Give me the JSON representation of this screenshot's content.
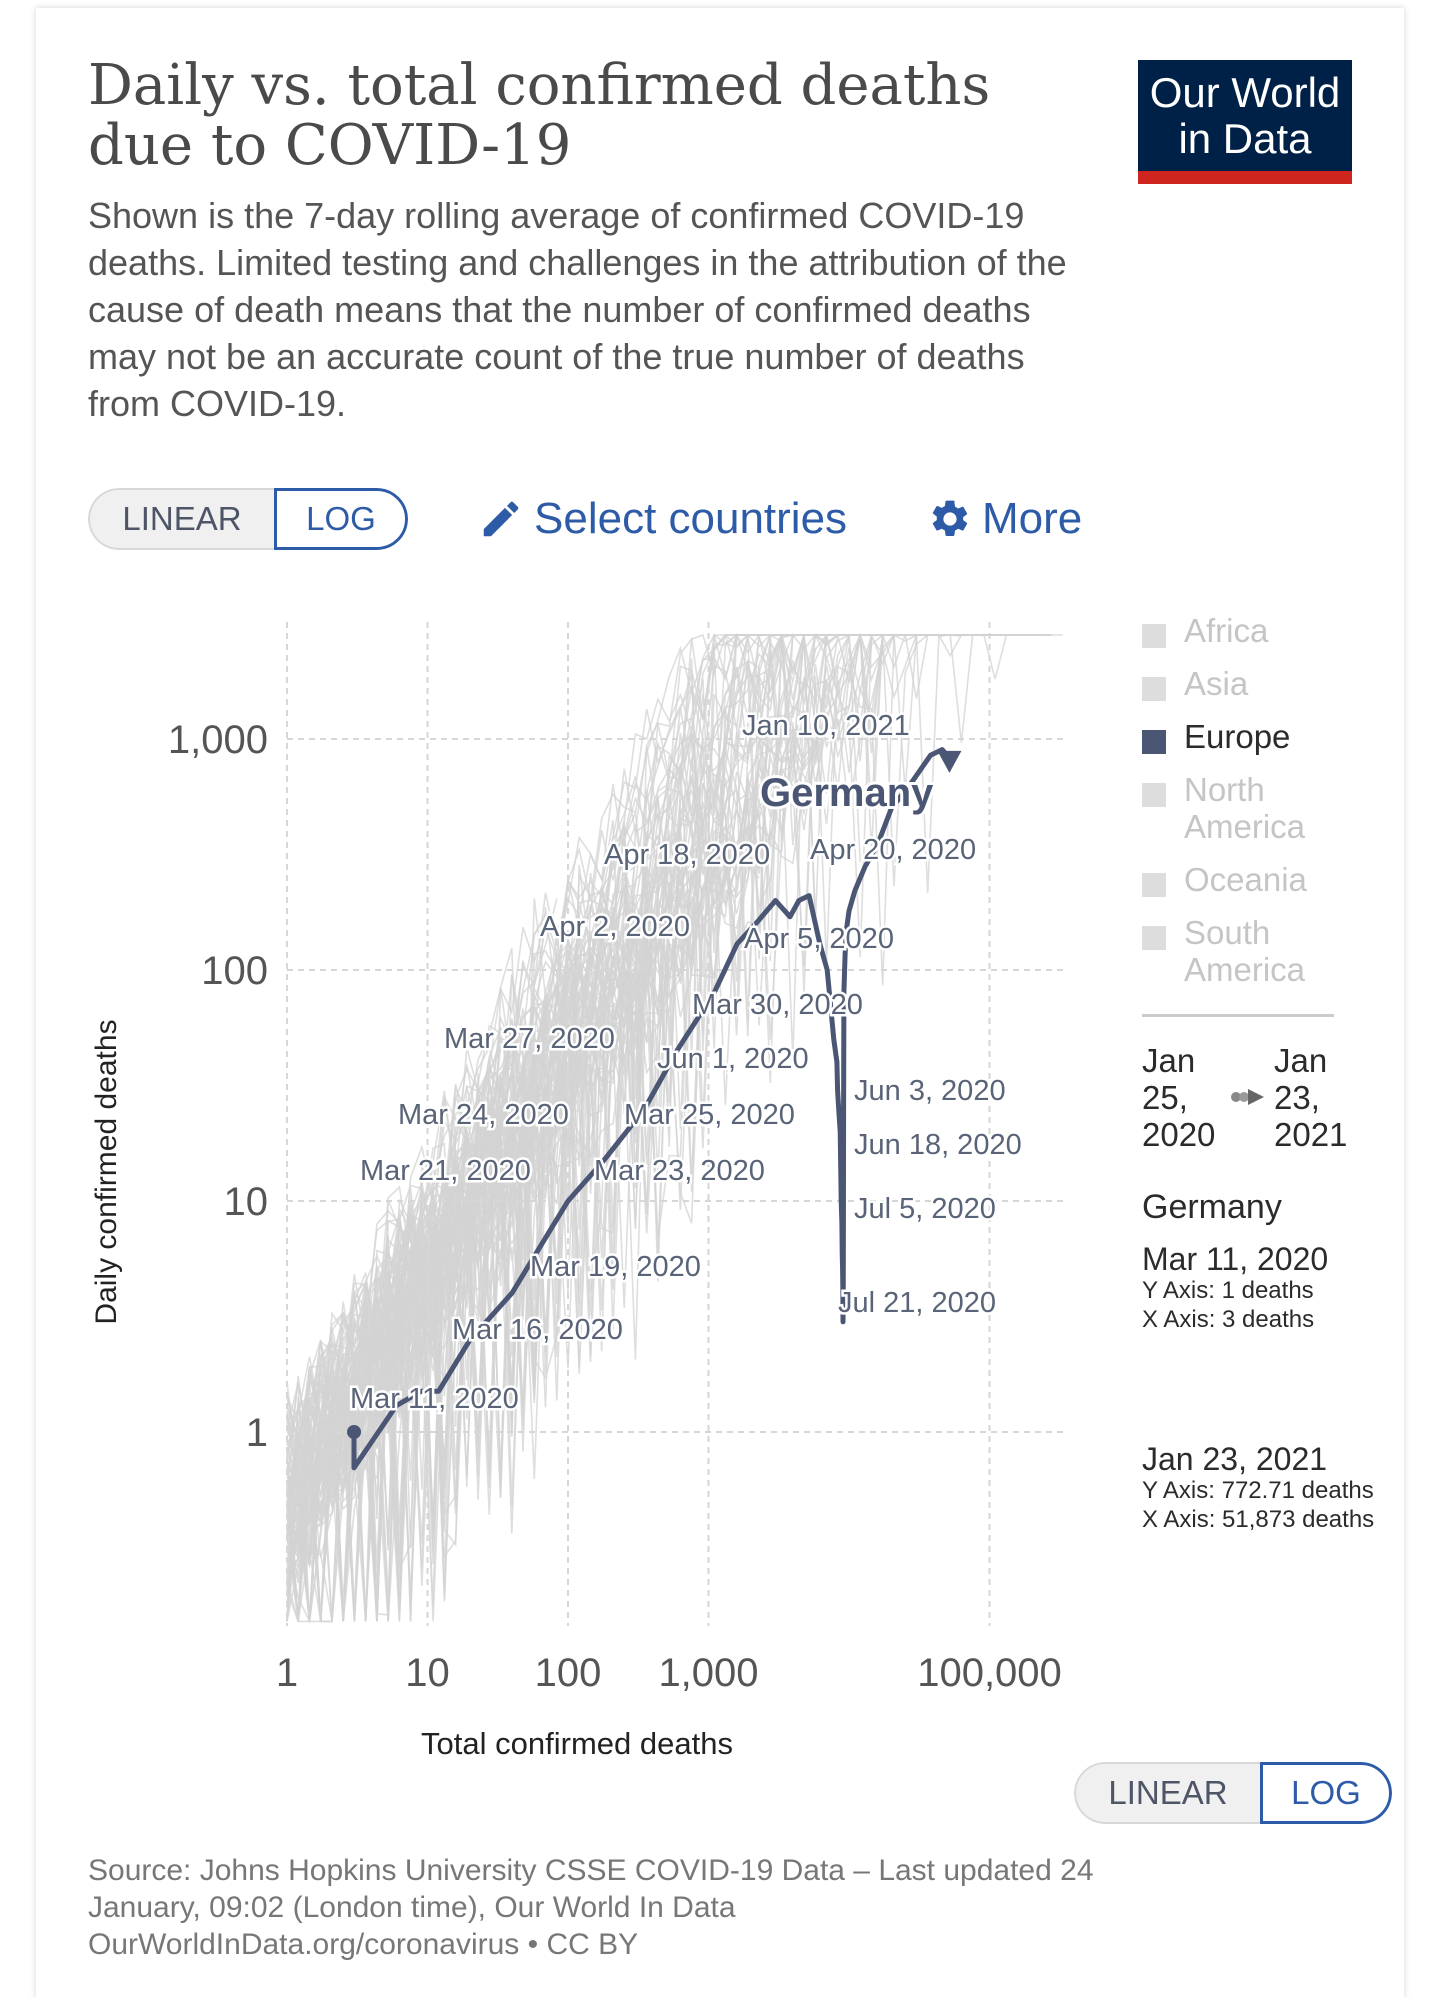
{
  "header": {
    "title": "Daily vs. total confirmed deaths due to COVID-19",
    "subtitle": "Shown is the 7-day rolling average of confirmed COVID-19 deaths. Limited testing and challenges in the attribution of the cause of death means that the number of confirmed deaths may not be an accurate count of the true number of deaths from COVID-19."
  },
  "logo": {
    "line1": "Our World",
    "line2": "in Data"
  },
  "scale_toggle_top": {
    "linear": "LINEAR",
    "log": "LOG",
    "selected": "LOG"
  },
  "controls": {
    "select_countries": "Select countries",
    "more": "More"
  },
  "legend": [
    {
      "label": "Africa",
      "active": false
    },
    {
      "label": "Asia",
      "active": false
    },
    {
      "label": "Europe",
      "active": true
    },
    {
      "label": "North America",
      "active": false
    },
    {
      "label": "Oceania",
      "active": false
    },
    {
      "label": "South America",
      "active": false
    }
  ],
  "time_range": {
    "start": "Jan 25, 2020",
    "end": "Jan 23, 2021"
  },
  "tooltip": {
    "country": "Germany",
    "start": {
      "date": "Mar 11, 2020",
      "y": "Y Axis: 1 deaths",
      "x": "X Axis: 3 deaths"
    },
    "end": {
      "date": "Jan 23, 2021",
      "y": "Y Axis: 772.71 deaths",
      "x": "X Axis: 51,873 deaths"
    }
  },
  "scale_toggle_bottom": {
    "linear": "LINEAR",
    "log": "LOG",
    "selected": "LOG"
  },
  "footer": {
    "line1": "Source: Johns Hopkins University CSSE COVID-19 Data – Last updated 24",
    "line2": "January, 09:02 (London time), Our World In Data",
    "line3": "OurWorldInData.org/coronavirus • CC BY"
  },
  "colors": {
    "highlight": "#4b5674",
    "background_lines": "#d3d3d3",
    "brand_navy": "#002147",
    "brand_red": "#ce261e",
    "link": "#2e5ba8"
  },
  "icons": {
    "select_countries": "pencil-icon",
    "more": "gear-icon"
  },
  "chart_data": {
    "type": "line",
    "xlabel": "Total confirmed deaths",
    "ylabel": "Daily confirmed deaths",
    "x_scale": "log",
    "y_scale": "log",
    "xlim": [
      1,
      250000
    ],
    "ylim": [
      0.15,
      3000
    ],
    "x_ticks": [
      1,
      10,
      100,
      1000,
      100000
    ],
    "x_tick_labels": [
      "1",
      "10",
      "100",
      "1,000",
      "100,000"
    ],
    "y_ticks": [
      1,
      10,
      100,
      1000
    ],
    "y_tick_labels": [
      "1",
      "10",
      "100",
      "1,000"
    ],
    "grid": true,
    "highlight_series": {
      "name": "Germany",
      "x": [
        3,
        3,
        6,
        9,
        12,
        20,
        40,
        60,
        100,
        180,
        350,
        600,
        1100,
        1600,
        2200,
        3000,
        3800,
        4400,
        5200,
        6200,
        7000,
        7400,
        7800,
        8200,
        8300,
        8450,
        8650,
        8800,
        8900,
        8950,
        9000,
        9050,
        9070,
        9100,
        9120,
        9150,
        9180,
        9200,
        9300,
        9400,
        9600,
        10000,
        11000,
        13000,
        16000,
        20000,
        28000,
        38000,
        46000,
        50000,
        51873
      ],
      "y": [
        1,
        0.7,
        1.3,
        1.5,
        1.5,
        2.5,
        4,
        6,
        10,
        15,
        25,
        45,
        80,
        130,
        160,
        200,
        170,
        200,
        210,
        130,
        100,
        70,
        50,
        40,
        30,
        25,
        20,
        10,
        8,
        6,
        5,
        4,
        3,
        3.5,
        8,
        25,
        50,
        80,
        100,
        120,
        150,
        180,
        220,
        280,
        350,
        500,
        650,
        850,
        900,
        850,
        772.71
      ]
    },
    "annotations": [
      "Mar 11, 2020",
      "Mar 16, 2020",
      "Mar 19, 2020",
      "Mar 21, 2020",
      "Mar 23, 2020",
      "Mar 24, 2020",
      "Mar 25, 2020",
      "Mar 27, 2020",
      "Mar 30, 2020",
      "Jun 1, 2020",
      "Apr 2, 2020",
      "Apr 5, 2020",
      "Apr 18, 2020",
      "Apr 20, 2020",
      "Jun 3, 2020",
      "Jun 18, 2020",
      "Jul 5, 2020",
      "Jul 21, 2020",
      "Jan 10, 2021"
    ],
    "highlight_label": "Germany"
  }
}
